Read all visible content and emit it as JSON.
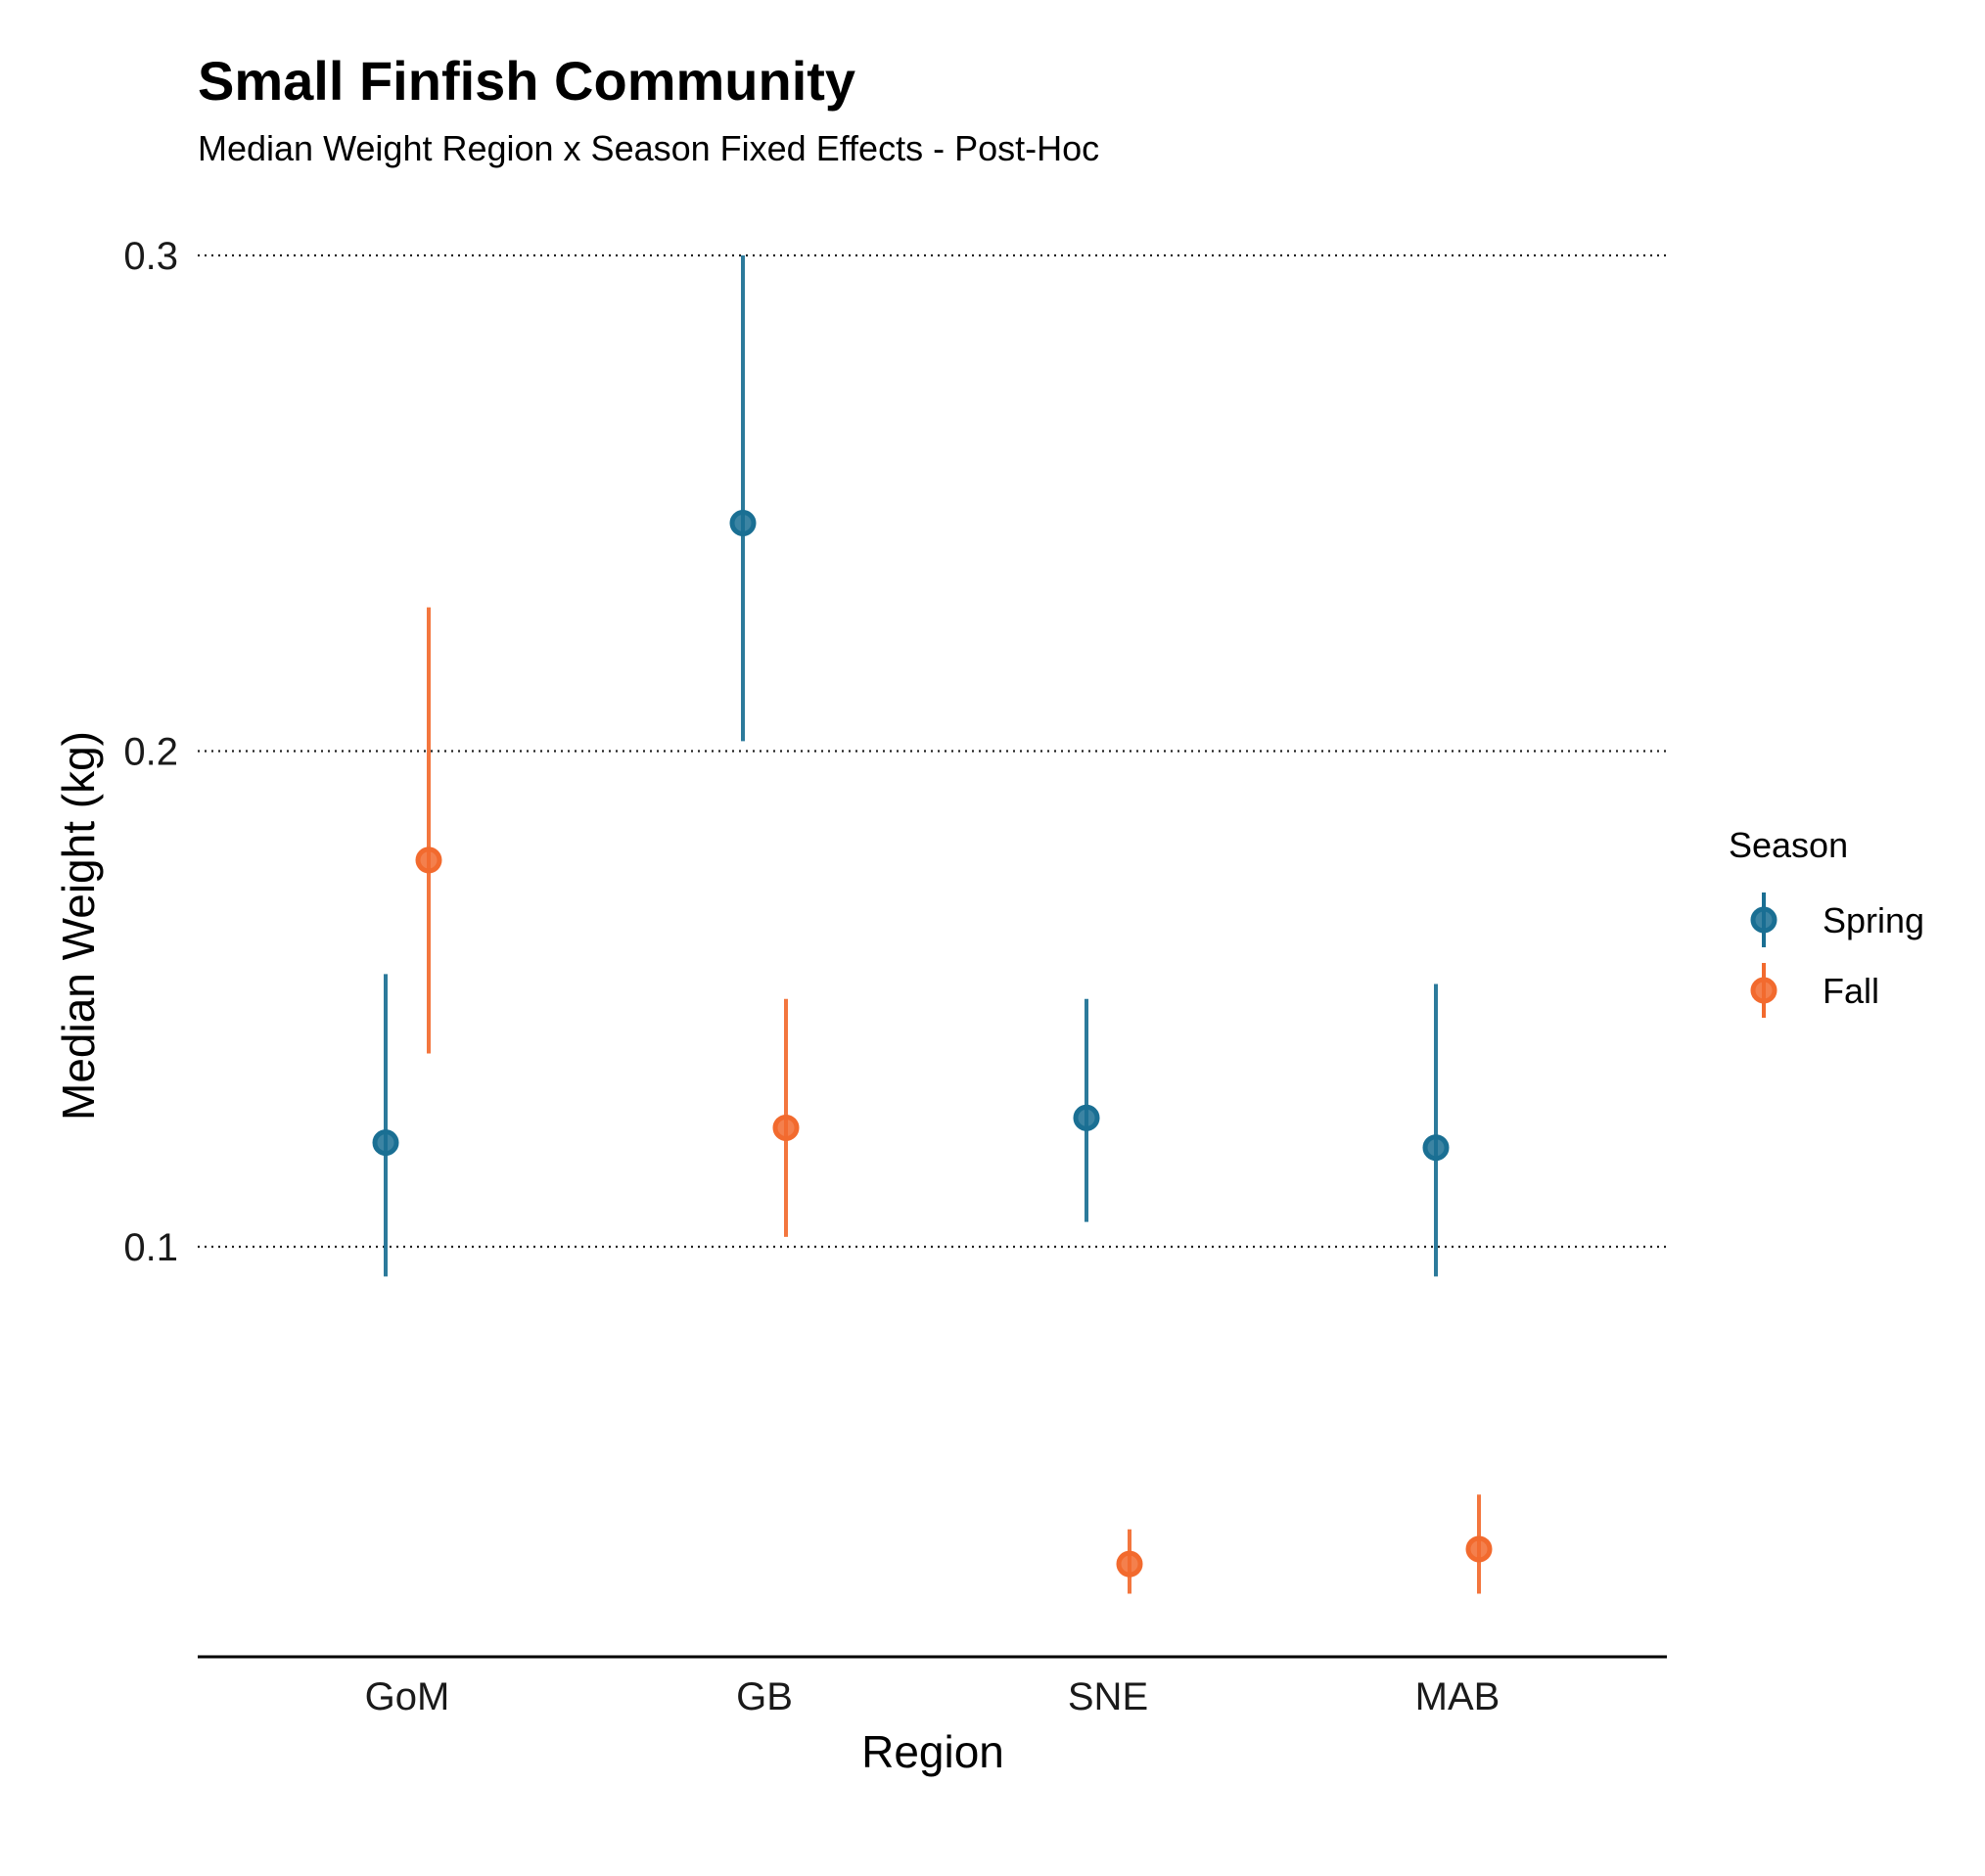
{
  "chart_data": {
    "type": "scatter",
    "title": "Small Finfish Community",
    "subtitle": "Median Weight Region x Season Fixed Effects - Post-Hoc",
    "xlabel": "Region",
    "ylabel": "Median Weight (kg)",
    "categories": [
      "GoM",
      "GB",
      "SNE",
      "MAB"
    ],
    "ylim": [
      0.0335,
      0.3
    ],
    "yticks": [
      0.1,
      0.2,
      0.3
    ],
    "ytick_labels": [
      "0.1",
      "0.2",
      "0.3"
    ],
    "grid": "horizontal dotted",
    "legend": {
      "title": "Season",
      "placement": "right"
    },
    "series": [
      {
        "name": "Spring",
        "color": "#1a6f93",
        "values": [
          0.121,
          0.246,
          0.126,
          0.12
        ],
        "lower": [
          0.094,
          0.202,
          0.105,
          0.094
        ],
        "upper": [
          0.155,
          0.3,
          0.15,
          0.153
        ]
      },
      {
        "name": "Fall",
        "color": "#f26a2e",
        "values": [
          0.178,
          0.124,
          0.036,
          0.039
        ],
        "lower": [
          0.139,
          0.102,
          0.03,
          0.03
        ],
        "upper": [
          0.229,
          0.15,
          0.043,
          0.05
        ]
      }
    ]
  }
}
